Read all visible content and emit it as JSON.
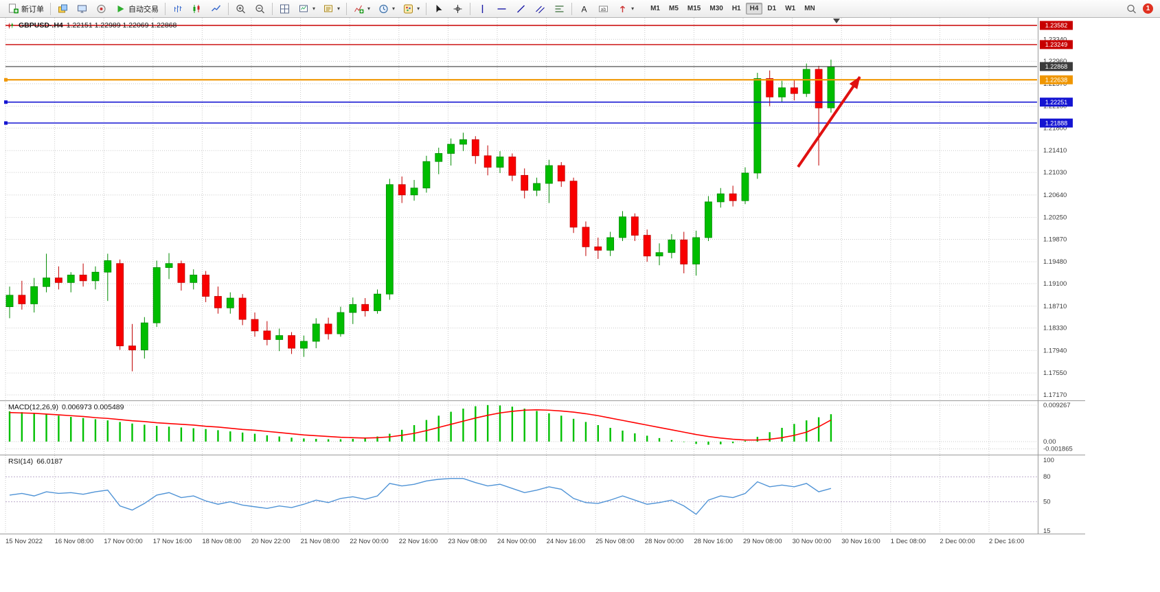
{
  "toolbar": {
    "new_order": "新订单",
    "auto_trading": "自动交易",
    "timeframes": [
      "M1",
      "M5",
      "M15",
      "M30",
      "H1",
      "H4",
      "D1",
      "W1",
      "MN"
    ],
    "active_timeframe": "H4",
    "notification_count": "1"
  },
  "chart": {
    "symbol_title": "GBPUSD-.H4",
    "ohlc_text": "1.22151 1.22989 1.22069 1.22868",
    "macd_label": "MACD(12,26,9)",
    "macd_values": "0.006973 0.005489",
    "rsi_label": "RSI(14)",
    "rsi_value": "66.0187"
  },
  "chart_data": {
    "type": "candlestick",
    "symbol": "GBPUSD",
    "timeframe": "H4",
    "current_bar": {
      "open": 1.22151,
      "high": 1.22989,
      "low": 1.22069,
      "close": 1.22868
    },
    "price_axis": {
      "min": 1.1717,
      "max": 1.23582,
      "ticks": [
        "1.23340",
        "1.22960",
        "1.22570",
        "1.22180",
        "1.21800",
        "1.21410",
        "1.21030",
        "1.20640",
        "1.20250",
        "1.19870",
        "1.19480",
        "1.19100",
        "1.18710",
        "1.18330",
        "1.17940",
        "1.17550",
        "1.17170"
      ]
    },
    "time_labels": [
      "15 Nov 2022",
      "16 Nov 08:00",
      "17 Nov 00:00",
      "17 Nov 16:00",
      "18 Nov 08:00",
      "20 Nov 22:00",
      "21 Nov 08:00",
      "22 Nov 00:00",
      "22 Nov 16:00",
      "23 Nov 08:00",
      "24 Nov 00:00",
      "24 Nov 16:00",
      "25 Nov 08:00",
      "28 Nov 00:00",
      "28 Nov 16:00",
      "29 Nov 08:00",
      "30 Nov 00:00",
      "30 Nov 16:00",
      "1 Dec 08:00",
      "2 Dec 00:00",
      "2 Dec 16:00"
    ],
    "candles": [
      [
        1.187,
        1.1905,
        1.185,
        1.189
      ],
      [
        1.189,
        1.1915,
        1.1865,
        1.1875
      ],
      [
        1.1875,
        1.192,
        1.186,
        1.1905
      ],
      [
        1.1905,
        1.1962,
        1.1895,
        1.192
      ],
      [
        1.192,
        1.194,
        1.19,
        1.1912
      ],
      [
        1.1912,
        1.193,
        1.1895,
        1.1925
      ],
      [
        1.1925,
        1.1945,
        1.1905,
        1.1915
      ],
      [
        1.1915,
        1.194,
        1.19,
        1.193
      ],
      [
        1.193,
        1.1962,
        1.188,
        1.195
      ],
      [
        1.1945,
        1.1952,
        1.1795,
        1.1802
      ],
      [
        1.1802,
        1.184,
        1.1758,
        1.1795
      ],
      [
        1.1795,
        1.1852,
        1.178,
        1.1842
      ],
      [
        1.1842,
        1.195,
        1.1835,
        1.1938
      ],
      [
        1.1938,
        1.1963,
        1.1918,
        1.1945
      ],
      [
        1.1945,
        1.195,
        1.1898,
        1.1912
      ],
      [
        1.1912,
        1.1935,
        1.19,
        1.1925
      ],
      [
        1.1925,
        1.1932,
        1.1878,
        1.1888
      ],
      [
        1.1888,
        1.1905,
        1.1858,
        1.1868
      ],
      [
        1.1868,
        1.1895,
        1.1858,
        1.1885
      ],
      [
        1.1885,
        1.1892,
        1.1838,
        1.1848
      ],
      [
        1.1848,
        1.186,
        1.1818,
        1.1828
      ],
      [
        1.1828,
        1.1845,
        1.1803,
        1.1813
      ],
      [
        1.1813,
        1.1832,
        1.1793,
        1.182
      ],
      [
        1.182,
        1.1826,
        1.1788,
        1.1798
      ],
      [
        1.1798,
        1.182,
        1.1783,
        1.181
      ],
      [
        1.181,
        1.185,
        1.1798,
        1.184
      ],
      [
        1.184,
        1.1851,
        1.1813,
        1.1823
      ],
      [
        1.1823,
        1.187,
        1.1818,
        1.186
      ],
      [
        1.186,
        1.1886,
        1.184,
        1.1874
      ],
      [
        1.1874,
        1.1885,
        1.1853,
        1.1863
      ],
      [
        1.1863,
        1.19,
        1.1858,
        1.1892
      ],
      [
        1.1892,
        1.2092,
        1.1882,
        1.2082
      ],
      [
        1.2082,
        1.2096,
        1.205,
        1.2064
      ],
      [
        1.2064,
        1.209,
        1.2054,
        1.2076
      ],
      [
        1.2076,
        1.2132,
        1.2068,
        1.2122
      ],
      [
        1.2122,
        1.2146,
        1.21,
        1.2136
      ],
      [
        1.2136,
        1.2162,
        1.2115,
        1.2152
      ],
      [
        1.2152,
        1.2172,
        1.214,
        1.216
      ],
      [
        1.216,
        1.2166,
        1.2118,
        1.2132
      ],
      [
        1.2132,
        1.215,
        1.2098,
        1.2112
      ],
      [
        1.2112,
        1.214,
        1.2102,
        1.213
      ],
      [
        1.213,
        1.2136,
        1.2088,
        1.2098
      ],
      [
        1.2098,
        1.211,
        1.2058,
        1.2072
      ],
      [
        1.2072,
        1.2094,
        1.2062,
        1.2084
      ],
      [
        1.2084,
        1.2125,
        1.205,
        1.2115
      ],
      [
        1.2115,
        1.2121,
        1.2078,
        1.2088
      ],
      [
        1.2088,
        1.2094,
        1.1998,
        1.2008
      ],
      [
        1.2008,
        1.2018,
        1.1958,
        1.1974
      ],
      [
        1.1974,
        1.199,
        1.1953,
        1.1968
      ],
      [
        1.1968,
        1.2,
        1.1958,
        1.199
      ],
      [
        1.199,
        1.2036,
        1.1984,
        1.2026
      ],
      [
        1.2026,
        1.2032,
        1.1984,
        1.1994
      ],
      [
        1.1994,
        1.2004,
        1.1948,
        1.1958
      ],
      [
        1.1958,
        1.198,
        1.1942,
        1.1964
      ],
      [
        1.1964,
        1.1996,
        1.1954,
        1.1986
      ],
      [
        1.1986,
        1.2,
        1.1928,
        1.1944
      ],
      [
        1.1944,
        1.2002,
        1.1924,
        1.199
      ],
      [
        1.199,
        1.2062,
        1.1984,
        1.2052
      ],
      [
        1.2052,
        1.2076,
        1.2042,
        1.2066
      ],
      [
        1.2066,
        1.208,
        1.2044,
        1.2054
      ],
      [
        1.2054,
        1.2112,
        1.2048,
        1.2102
      ],
      [
        1.2102,
        1.2276,
        1.2092,
        1.2266
      ],
      [
        1.2266,
        1.228,
        1.2218,
        1.2234
      ],
      [
        1.2234,
        1.2262,
        1.2224,
        1.225
      ],
      [
        1.225,
        1.2263,
        1.2228,
        1.224
      ],
      [
        1.224,
        1.2292,
        1.2234,
        1.2282
      ],
      [
        1.2282,
        1.2288,
        1.2115,
        1.2215
      ],
      [
        1.22151,
        1.22989,
        1.22069,
        1.22868
      ]
    ],
    "hlines": [
      {
        "price": 1.23582,
        "label": "1.23582",
        "color": "#c80000",
        "width": 1.4,
        "handle": false
      },
      {
        "price": 1.23249,
        "label": "1.23249",
        "color": "#c80000",
        "width": 1.4,
        "handle": false
      },
      {
        "price": 1.22868,
        "label": "1.22868",
        "color": "#3c3c3c",
        "width": 1.1,
        "handle": false
      },
      {
        "price": 1.22638,
        "label": "1.22638",
        "color": "#f09600",
        "width": 2.2,
        "handle": true
      },
      {
        "price": 1.22251,
        "label": "1.22251",
        "color": "#1515d2",
        "width": 1.6,
        "handle": true
      },
      {
        "price": 1.21888,
        "label": "1.21888",
        "color": "#1515d2",
        "width": 1.6,
        "handle": true
      }
    ],
    "macd": {
      "params": "12,26,9",
      "main_value": 0.006973,
      "signal_value": 0.005489,
      "axis": [
        "0.009267",
        "0.00",
        "-0.001865"
      ],
      "histogram": [
        0.0077,
        0.0075,
        0.0073,
        0.007,
        0.0066,
        0.0063,
        0.006,
        0.0057,
        0.0054,
        0.005,
        0.0046,
        0.0043,
        0.004,
        0.0038,
        0.0036,
        0.0034,
        0.0032,
        0.0029,
        0.0026,
        0.0023,
        0.002,
        0.0016,
        0.0013,
        0.001,
        0.0008,
        0.0007,
        0.0006,
        0.0006,
        0.0007,
        0.0009,
        0.0013,
        0.002,
        0.003,
        0.0042,
        0.0055,
        0.0066,
        0.0076,
        0.0084,
        0.009,
        0.0093,
        0.0092,
        0.0089,
        0.0084,
        0.0078,
        0.0072,
        0.0066,
        0.0058,
        0.005,
        0.0042,
        0.0035,
        0.0028,
        0.0021,
        0.0015,
        0.0009,
        0.0004,
        -0.0001,
        -0.0006,
        -0.0008,
        -0.0007,
        -0.0004,
        0.0002,
        0.0012,
        0.0024,
        0.0035,
        0.0045,
        0.0054,
        0.0062,
        0.006973
      ],
      "signal": [
        0.0074,
        0.0073,
        0.0072,
        0.007,
        0.0068,
        0.0066,
        0.0064,
        0.0061,
        0.0059,
        0.0056,
        0.0053,
        0.0051,
        0.0048,
        0.0046,
        0.0044,
        0.0042,
        0.0039,
        0.0037,
        0.0034,
        0.0031,
        0.0029,
        0.0026,
        0.0023,
        0.002,
        0.0017,
        0.0015,
        0.0013,
        0.0011,
        0.001,
        0.0009,
        0.001,
        0.0012,
        0.0016,
        0.0021,
        0.0028,
        0.0036,
        0.0044,
        0.0052,
        0.006,
        0.0067,
        0.0073,
        0.0077,
        0.008,
        0.0081,
        0.008,
        0.0078,
        0.0075,
        0.0071,
        0.0066,
        0.006,
        0.0054,
        0.0048,
        0.0042,
        0.0036,
        0.003,
        0.0024,
        0.0018,
        0.0013,
        0.0009,
        0.0006,
        0.0004,
        0.0004,
        0.0006,
        0.001,
        0.0016,
        0.0024,
        0.0038,
        0.005489
      ]
    },
    "rsi": {
      "period": 14,
      "value": 66.0187,
      "levels": [
        80,
        50
      ],
      "axis": [
        "100",
        "80",
        "50",
        "15"
      ],
      "values": [
        58,
        60,
        57,
        62,
        60,
        61,
        59,
        62,
        64,
        45,
        40,
        48,
        58,
        61,
        55,
        57,
        51,
        47,
        50,
        46,
        44,
        42,
        45,
        43,
        47,
        52,
        49,
        54,
        56,
        53,
        57,
        72,
        69,
        71,
        75,
        77,
        78,
        78,
        73,
        69,
        71,
        66,
        61,
        64,
        68,
        65,
        54,
        49,
        48,
        52,
        57,
        52,
        47,
        49,
        52,
        45,
        35,
        52,
        57,
        55,
        60,
        74,
        68,
        70,
        68,
        72,
        62,
        66.0187
      ]
    },
    "annotation_arrow": {
      "from": [
        1162,
        243
      ],
      "to": [
        1252,
        112
      ],
      "color": "#e01010"
    },
    "colors": {
      "up": "#00bd00",
      "up_edge": "#008a00",
      "down": "#f80000",
      "down_edge": "#c00000",
      "macd_hist": "#00c000",
      "macd_signal": "#ff0000",
      "rsi_line": "#4f93d6",
      "grid": "#c9c9c9",
      "bg": "#ffffff"
    }
  }
}
